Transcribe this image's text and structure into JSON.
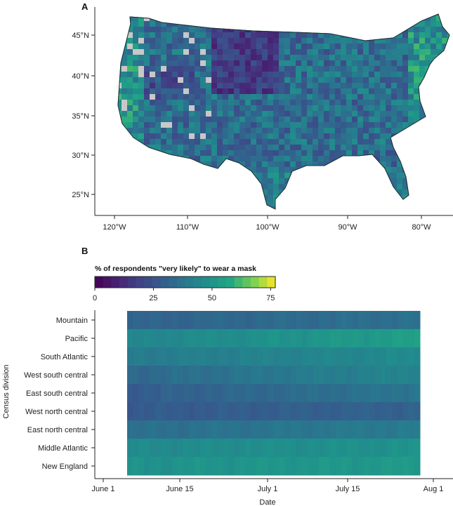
{
  "panels": {
    "a": "A",
    "b": "B"
  },
  "map": {
    "lat_labels": [
      "45°N",
      "40°N",
      "35°N",
      "30°N",
      "25°N"
    ],
    "lon_labels": [
      "120°W",
      "110°W",
      "100°W",
      "90°W",
      "80°W"
    ]
  },
  "colorbar": {
    "title": "% of respondents \"very likely\" to wear a mask",
    "ticks": [
      "0",
      "25",
      "50",
      "75"
    ],
    "range": [
      0,
      77
    ],
    "palette": "viridis"
  },
  "chart_data": [
    {
      "type": "map",
      "latitude_ticks": [
        "45°N",
        "40°N",
        "35°N",
        "30°N",
        "25°N"
      ],
      "longitude_ticks": [
        "120°W",
        "110°W",
        "100°W",
        "90°W",
        "80°W"
      ],
      "colorbar_title": "% of respondents \"very likely\" to wear a mask",
      "colorbar_range": [
        0,
        77
      ]
    },
    {
      "type": "heatmap",
      "xlabel": "Date",
      "ylabel": "Census division",
      "x_ticks": [
        "June 1",
        "June 15",
        "July 1",
        "July 15",
        "Aug 1"
      ],
      "date_range": [
        "June 6",
        "July 27"
      ],
      "rows": [
        "Mountain",
        "Pacific",
        "South Atlantic",
        "West south central",
        "East south central",
        "West north central",
        "East north central",
        "Middle Atlantic",
        "New England"
      ],
      "series": [
        {
          "name": "Mountain",
          "start": 31,
          "end": 36
        },
        {
          "name": "Pacific",
          "start": 44,
          "end": 54
        },
        {
          "name": "South Atlantic",
          "start": 40,
          "end": 46
        },
        {
          "name": "West south central",
          "start": 33,
          "end": 44
        },
        {
          "name": "East south central",
          "start": 29,
          "end": 38
        },
        {
          "name": "West north central",
          "start": 28,
          "end": 31
        },
        {
          "name": "East north central",
          "start": 35,
          "end": 40
        },
        {
          "name": "Middle Atlantic",
          "start": 46,
          "end": 49
        },
        {
          "name": "New England",
          "start": 49,
          "end": 52
        }
      ]
    }
  ]
}
